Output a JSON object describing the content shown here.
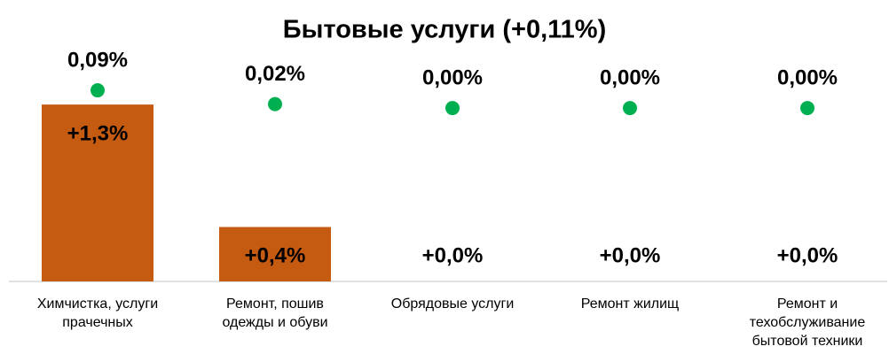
{
  "chart_data": {
    "type": "bar",
    "title": "Бытовые услуги (+0,11%)",
    "categories": [
      "Химчистка, услуги прачечных",
      "Ремонт, пошив одежды и обуви",
      "Обрядовые услуги",
      "Ремонт жилищ",
      "Ремонт и техобслуживание бытовой техники"
    ],
    "series": [
      {
        "type": "bar",
        "color": "#c55a11",
        "values": [
          1.3,
          0.4,
          0,
          0,
          0
        ],
        "value_labels": [
          "+1,3%",
          "+0,4%",
          "+0,0%",
          "+0,0%",
          "+0,0%"
        ]
      },
      {
        "type": "scatter",
        "axis": "y2",
        "color": "#00b050",
        "values": [
          0.09,
          0.02,
          0,
          0,
          0
        ],
        "value_labels": [
          "0,09%",
          "0,02%",
          "0,00%",
          "0,00%",
          "0,00%"
        ]
      }
    ],
    "ylim": [
      0,
      1.6
    ],
    "y2lim": [
      -0.88,
      0.225
    ]
  }
}
